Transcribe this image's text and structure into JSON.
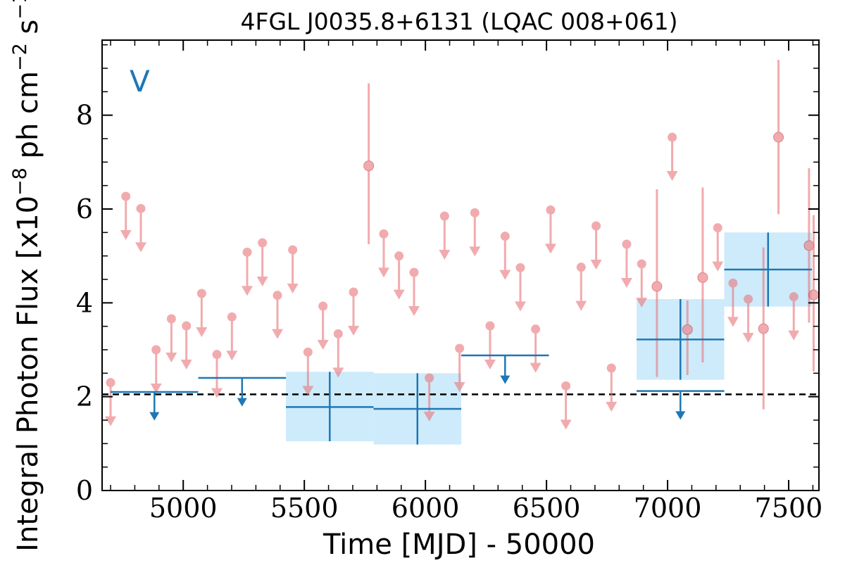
{
  "chart_data": {
    "type": "scatter",
    "title": "4FGL J0035.8+6131 (LQAC 008+061)",
    "xlabel": "Time [MJD] - 50000",
    "ylabel": "Integral Photon Flux [x10",
    "ylabel_exp": "−8",
    "ylabel_mid": " ph cm",
    "ylabel_exp2": "−2",
    "ylabel_mid2": " s",
    "ylabel_exp3": "−1",
    "ylabel_end": "]",
    "annotation": "V",
    "xlim": [
      4665,
      7625
    ],
    "ylim": [
      0,
      9.6
    ],
    "x_ticks": [
      5000,
      5500,
      6000,
      6500,
      7000,
      7500
    ],
    "x_tick_labels": [
      "5000",
      "5500",
      "6000",
      "6500",
      "7000",
      "7500"
    ],
    "y_ticks": [
      0,
      2,
      4,
      6,
      8
    ],
    "y_tick_labels": [
      "0",
      "2",
      "4",
      "6",
      "8"
    ],
    "mean_flux": 2.05,
    "colors": {
      "short_bin": "#e8757a",
      "long_bin": "#1f77b4",
      "long_bin_fill": "#cdebfa",
      "mean_line": "#000000"
    },
    "short_bin_upper_limits": [
      {
        "x": 4700,
        "y": 2.3
      },
      {
        "x": 4763,
        "y": 6.27
      },
      {
        "x": 4825,
        "y": 6.01
      },
      {
        "x": 4888,
        "y": 3.0
      },
      {
        "x": 4951,
        "y": 3.66
      },
      {
        "x": 5013,
        "y": 3.51
      },
      {
        "x": 5076,
        "y": 4.2
      },
      {
        "x": 5139,
        "y": 2.9
      },
      {
        "x": 5201,
        "y": 3.7
      },
      {
        "x": 5264,
        "y": 5.08
      },
      {
        "x": 5327,
        "y": 5.28
      },
      {
        "x": 5389,
        "y": 4.16
      },
      {
        "x": 5452,
        "y": 5.13
      },
      {
        "x": 5515,
        "y": 2.95
      },
      {
        "x": 5577,
        "y": 3.93
      },
      {
        "x": 5640,
        "y": 3.34
      },
      {
        "x": 5703,
        "y": 4.23
      },
      {
        "x": 5828,
        "y": 5.47
      },
      {
        "x": 5891,
        "y": 5.0
      },
      {
        "x": 5953,
        "y": 4.65
      },
      {
        "x": 6016,
        "y": 2.4
      },
      {
        "x": 6079,
        "y": 5.85
      },
      {
        "x": 6141,
        "y": 3.03
      },
      {
        "x": 6204,
        "y": 5.92
      },
      {
        "x": 6267,
        "y": 3.51
      },
      {
        "x": 6329,
        "y": 5.42
      },
      {
        "x": 6392,
        "y": 4.75
      },
      {
        "x": 6455,
        "y": 3.44
      },
      {
        "x": 6517,
        "y": 5.98
      },
      {
        "x": 6580,
        "y": 2.23
      },
      {
        "x": 6643,
        "y": 4.76
      },
      {
        "x": 6705,
        "y": 5.64
      },
      {
        "x": 6768,
        "y": 2.61
      },
      {
        "x": 6831,
        "y": 5.25
      },
      {
        "x": 6893,
        "y": 4.83
      },
      {
        "x": 7019,
        "y": 7.53
      },
      {
        "x": 7207,
        "y": 5.6
      },
      {
        "x": 7270,
        "y": 4.42
      },
      {
        "x": 7333,
        "y": 4.08
      },
      {
        "x": 7521,
        "y": 4.13
      }
    ],
    "short_bin_detections": [
      {
        "x": 5766,
        "y": 6.92,
        "ylow": 5.25,
        "yhigh": 8.68
      },
      {
        "x": 6956,
        "y": 4.35,
        "ylow": 2.42,
        "yhigh": 6.42
      },
      {
        "x": 7082,
        "y": 3.43,
        "ylow": 2.46,
        "yhigh": 4.05
      },
      {
        "x": 7145,
        "y": 4.54,
        "ylow": 2.73,
        "yhigh": 6.46
      },
      {
        "x": 7396,
        "y": 3.45,
        "ylow": 1.73,
        "yhigh": 5.18
      },
      {
        "x": 7458,
        "y": 7.53,
        "ylow": 5.89,
        "yhigh": 9.18
      },
      {
        "x": 7584,
        "y": 5.22,
        "ylow": 3.58,
        "yhigh": 6.87
      },
      {
        "x": 7603,
        "y": 4.17,
        "ylow": 2.54,
        "yhigh": 5.87
      }
    ],
    "long_bin_upper_limits": [
      {
        "x0": 4700,
        "x1": 5062,
        "y": 2.1
      },
      {
        "x0": 5062,
        "x1": 5424,
        "y": 2.4
      },
      {
        "x0": 6148,
        "x1": 6510,
        "y": 2.88
      },
      {
        "x0": 6872,
        "x1": 7234,
        "y": 2.12
      }
    ],
    "long_bin_detections": [
      {
        "x0": 5424,
        "x1": 5786,
        "y": 1.78,
        "ylow": 1.05,
        "yhigh": 2.53
      },
      {
        "x0": 5786,
        "x1": 6148,
        "y": 1.74,
        "ylow": 0.98,
        "yhigh": 2.5
      },
      {
        "x0": 6872,
        "x1": 7234,
        "y": 3.22,
        "ylow": 2.36,
        "yhigh": 4.08
      },
      {
        "x0": 7234,
        "x1": 7596,
        "y": 4.71,
        "ylow": 3.92,
        "yhigh": 5.5
      }
    ]
  }
}
